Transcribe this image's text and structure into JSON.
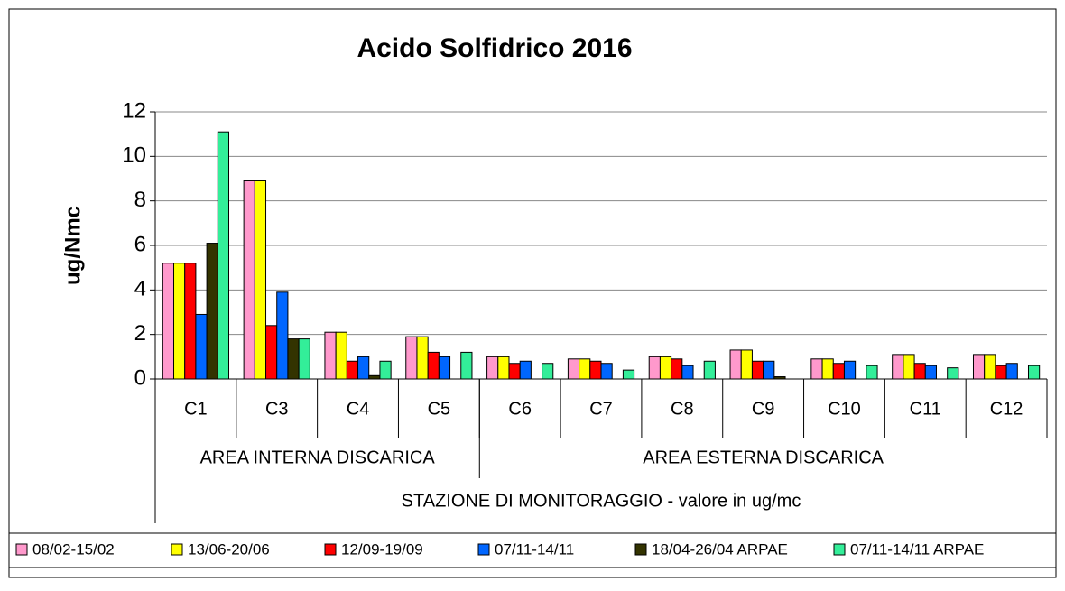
{
  "chart_data": {
    "type": "bar",
    "title": "Acido Solfidrico 2016",
    "y_label": "ug/Nmc",
    "x_label": "STAZIONE DI MONITORAGGIO - valore in ug/mc",
    "categories": [
      "C1",
      "C3",
      "C4",
      "C5",
      "C6",
      "C7",
      "C8",
      "C9",
      "C10",
      "C11",
      "C12"
    ],
    "category_groups": [
      {
        "label": "AREA INTERNA DISCARICA",
        "count": 4
      },
      {
        "label": "AREA ESTERNA DISCARICA",
        "count": 7
      }
    ],
    "series": [
      {
        "name": "08/02-15/02",
        "color": "#ff99cc",
        "values": [
          5.2,
          8.9,
          2.1,
          1.9,
          1.0,
          0.9,
          1.0,
          1.3,
          0.9,
          1.1,
          1.1
        ]
      },
      {
        "name": "13/06-20/06",
        "color": "#ffff00",
        "values": [
          5.2,
          8.9,
          2.1,
          1.9,
          1.0,
          0.9,
          1.0,
          1.3,
          0.9,
          1.1,
          1.1
        ]
      },
      {
        "name": "12/09-19/09",
        "color": "#ff0000",
        "values": [
          5.2,
          2.4,
          0.8,
          1.2,
          0.7,
          0.8,
          0.9,
          0.8,
          0.7,
          0.7,
          0.6
        ]
      },
      {
        "name": "07/11-14/11",
        "color": "#0066ff",
        "values": [
          2.9,
          3.9,
          1.0,
          1.0,
          0.8,
          0.7,
          0.6,
          0.8,
          0.8,
          0.6,
          0.7
        ]
      },
      {
        "name": "18/04-26/04 ARPAE",
        "color": "#333300",
        "values": [
          6.1,
          1.8,
          0.15,
          null,
          null,
          null,
          null,
          0.1,
          null,
          null,
          null
        ]
      },
      {
        "name": "07/11-14/11 ARPAE",
        "color": "#33ee99",
        "values": [
          11.1,
          1.8,
          0.8,
          1.2,
          0.7,
          0.4,
          0.8,
          null,
          0.6,
          0.5,
          0.6
        ]
      }
    ],
    "ylim": [
      0,
      12
    ],
    "yticks": [
      0,
      2,
      4,
      6,
      8,
      10,
      12
    ],
    "grid": true
  }
}
